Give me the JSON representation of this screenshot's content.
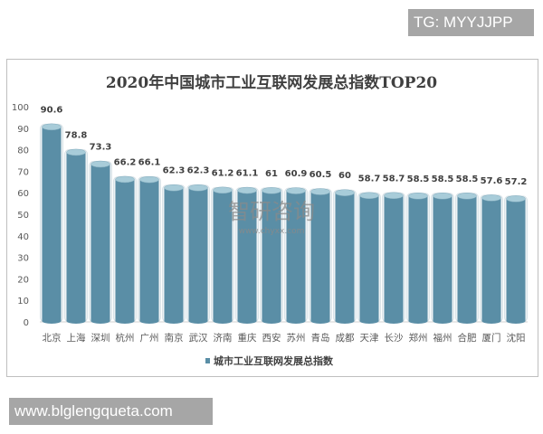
{
  "badge": "TG: MYYJJPP",
  "site": "www.blglengqueta.com",
  "watermark": {
    "logo": "智研咨询",
    "url": "www.chyxx.com"
  },
  "colors": {
    "bar": "#5a8ea6",
    "bar_top": "#a8ccd9",
    "text": "#404040"
  },
  "chart_data": {
    "type": "bar",
    "title": "2020年中国城市工业互联网发展总指数TOP20",
    "categories": [
      "北京",
      "上海",
      "深圳",
      "杭州",
      "广州",
      "南京",
      "武汉",
      "济南",
      "重庆",
      "西安",
      "苏州",
      "青岛",
      "成都",
      "天津",
      "长沙",
      "郑州",
      "福州",
      "合肥",
      "厦门",
      "沈阳"
    ],
    "series": [
      {
        "name": "城市工业互联网发展总指数",
        "values": [
          90.6,
          78.8,
          73.3,
          66.2,
          66.1,
          62.3,
          62.3,
          61.2,
          61.1,
          61,
          60.9,
          60.5,
          60,
          58.7,
          58.7,
          58.5,
          58.5,
          58.5,
          57.6,
          57.2
        ]
      }
    ],
    "ylim": [
      0,
      100
    ],
    "yticks": [
      0,
      10,
      20,
      30,
      40,
      50,
      60,
      70,
      80,
      90,
      100
    ],
    "legend": "bottom",
    "grid": false
  }
}
